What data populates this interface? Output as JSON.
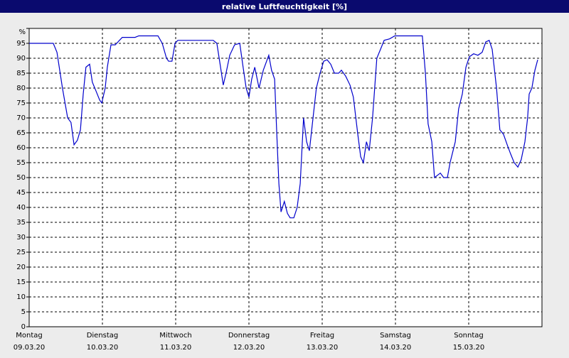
{
  "chart_data": {
    "type": "line",
    "title": "relative Luftfeuchtigkeit [%]",
    "x": [
      0,
      7.9,
      9.1,
      10.9,
      12.6,
      13.7,
      14.7,
      15.8,
      16.8,
      17.7,
      18.6,
      19.8,
      20.7,
      21.9,
      23.1,
      23.8,
      24.9,
      25.6,
      26.8,
      28.2,
      30.5,
      34.7,
      35.9,
      42.2,
      43.6,
      45,
      45.7,
      46.8,
      47.8,
      48.7,
      60.3,
      61.5,
      62.7,
      63.6,
      64.5,
      65.7,
      67.3,
      69,
      70.1,
      71.1,
      72,
      72.9,
      73.9,
      75.3,
      76.7,
      78.5,
      79.4,
      80.4,
      81.1,
      81.8,
      82.5,
      83.6,
      84.6,
      85.5,
      86.7,
      87.8,
      88.8,
      89.9,
      90.9,
      91.8,
      93,
      94.1,
      95.3,
      96.5,
      97.6,
      98.8,
      100,
      101.4,
      102.3,
      103.7,
      105.1,
      106.2,
      107.6,
      108.6,
      109.5,
      110.5,
      111.4,
      112.5,
      113.9,
      115.1,
      116.3,
      118.1,
      119.8,
      128.8,
      129.8,
      130.7,
      131.9,
      132.8,
      134.7,
      135.8,
      137,
      137.9,
      139.6,
      140.7,
      141.9,
      143.1,
      144.2,
      145.6,
      147,
      148.4,
      149.6,
      150.7,
      151.7,
      153.1,
      154.2,
      155.4,
      156.6,
      157.7,
      158.9,
      160.1,
      161.2,
      162.4,
      163.3,
      163.8,
      164.7,
      165.7,
      166.6
    ],
    "values": [
      95,
      95,
      92,
      80,
      70,
      68.5,
      61,
      62.5,
      66,
      78,
      87,
      88,
      82,
      79,
      76,
      75,
      80,
      87,
      94.5,
      94.5,
      97,
      97,
      97.5,
      97.5,
      95,
      90,
      89,
      89,
      95,
      96,
      96,
      95,
      87,
      81,
      85,
      91,
      94.5,
      95,
      87,
      80,
      77,
      83,
      87,
      80,
      86,
      91,
      86,
      83,
      65,
      48,
      38.5,
      42,
      38,
      36.5,
      36.5,
      40,
      48,
      70,
      62,
      59,
      70,
      80,
      85,
      89,
      89.5,
      88,
      85,
      85,
      86,
      84,
      81,
      77,
      65,
      57,
      55,
      62,
      59,
      70,
      90,
      93,
      96,
      96.5,
      97.5,
      97.5,
      85,
      68,
      62,
      50,
      51.5,
      50,
      50,
      55,
      62,
      73,
      78,
      87,
      90.5,
      91.5,
      91,
      92,
      95.5,
      96,
      93,
      80,
      66,
      64.5,
      61,
      58,
      55,
      53.5,
      56,
      62,
      70,
      78,
      80,
      86,
      89.5
    ],
    "color": "#0000cc",
    "xlim": [
      0,
      168
    ],
    "xticks": [
      {
        "value": 0,
        "label": "Montag"
      },
      {
        "value": 24,
        "label": "Dienstag"
      },
      {
        "value": 48,
        "label": "Mittwoch"
      },
      {
        "value": 72,
        "label": "Donnerstag"
      },
      {
        "value": 96,
        "label": "Freitag"
      },
      {
        "value": 120,
        "label": "Samstag"
      },
      {
        "value": 144,
        "label": "Sonntag"
      }
    ],
    "xtick_dates": [
      "09.03.20",
      "10.03.20",
      "11.03.20",
      "12.03.20",
      "13.03.20",
      "14.03.20",
      "15.03.20"
    ],
    "ylim": [
      0,
      100
    ],
    "yticks": [
      0,
      5,
      10,
      15,
      20,
      25,
      30,
      35,
      40,
      45,
      50,
      55,
      60,
      65,
      70,
      75,
      80,
      85,
      90,
      95,
      {
        "value": 100,
        "label": "%"
      }
    ],
    "grid": true
  }
}
